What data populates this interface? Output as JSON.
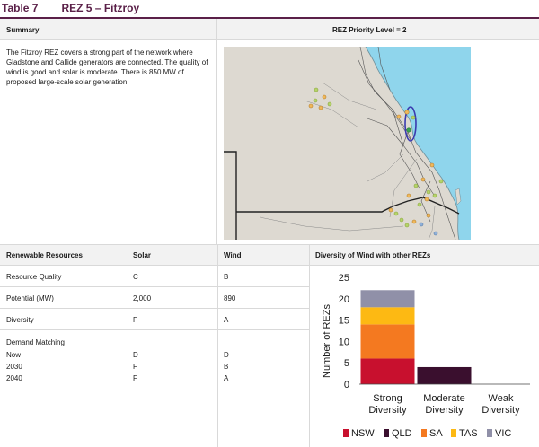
{
  "table": {
    "number": "Table 7",
    "name": "REZ 5 – Fitzroy"
  },
  "summary": {
    "header": "Summary",
    "text": "The Fitzroy REZ covers a strong part of the network where Gladstone and Callide generators are connected. The quality of wind is good and solar is moderate. There is 850 MW of proposed large-scale solar generation.",
    "priority_label": "REZ Priority Level = 2"
  },
  "resources": {
    "headers": [
      "Renewable Resources",
      "Solar",
      "Wind"
    ],
    "rows": [
      {
        "label": "Resource Quality",
        "solar": "C",
        "wind": "B"
      },
      {
        "label": "Potential (MW)",
        "solar": "2,000",
        "wind": "890"
      },
      {
        "label": "Diversity",
        "solar": "F",
        "wind": "A"
      }
    ],
    "demand": {
      "label": "Demand Matching",
      "rows": [
        {
          "label": "Now",
          "solar": "D",
          "wind": "D"
        },
        {
          "label": "2030",
          "solar": "F",
          "wind": "B"
        },
        {
          "label": "2040",
          "solar": "F",
          "wind": "A"
        }
      ]
    }
  },
  "diversity_header": "Diversity of Wind with other REZs",
  "colors": {
    "title": "#5a2048",
    "NSW": "#c8102e",
    "QLD": "#3a0f2e",
    "SA": "#f47920",
    "TAS": "#fdb913",
    "VIC": "#9090a8",
    "ocean": "#8fd5ec",
    "land": "#ddd9d1",
    "rez_outline": "#3a3aaf"
  },
  "chart_data": {
    "type": "bar",
    "stacked": true,
    "categories": [
      "Strong Diversity",
      "Moderate Diversity",
      "Weak Diversity"
    ],
    "series": [
      {
        "name": "NSW",
        "values": [
          6,
          0,
          0
        ]
      },
      {
        "name": "QLD",
        "values": [
          0,
          4,
          0
        ]
      },
      {
        "name": "SA",
        "values": [
          8,
          0,
          0
        ]
      },
      {
        "name": "TAS",
        "values": [
          4,
          0,
          0
        ]
      },
      {
        "name": "VIC",
        "values": [
          4,
          0,
          0
        ]
      }
    ],
    "ylabel": "Number of REZs",
    "ylim": [
      0,
      25
    ],
    "yticks": [
      "0",
      "5",
      "10",
      "15",
      "20",
      "25"
    ],
    "grid": false,
    "legend": "bottom"
  }
}
